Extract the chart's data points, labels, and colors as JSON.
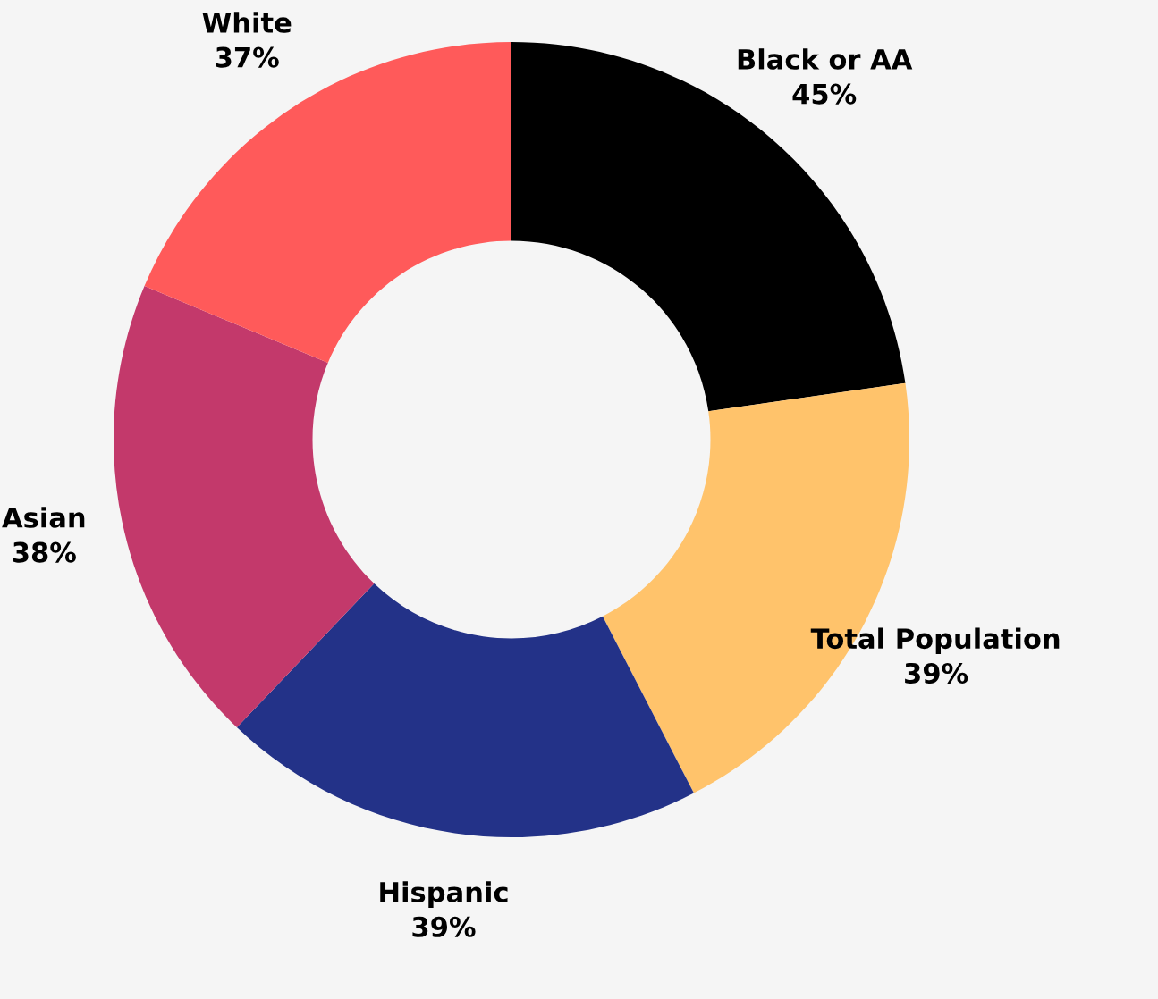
{
  "chart_data": {
    "type": "donut",
    "categories": [
      "Black or AA",
      "Total Population",
      "Hispanic",
      "Asian",
      "White"
    ],
    "values": [
      45,
      39,
      39,
      38,
      37
    ],
    "colors": [
      "#000000",
      "#ffc36b",
      "#233288",
      "#c3396b",
      "#ff5a5a"
    ],
    "value_labels": [
      "45%",
      "39%",
      "39%",
      "38%",
      "37%"
    ],
    "legend": false
  }
}
